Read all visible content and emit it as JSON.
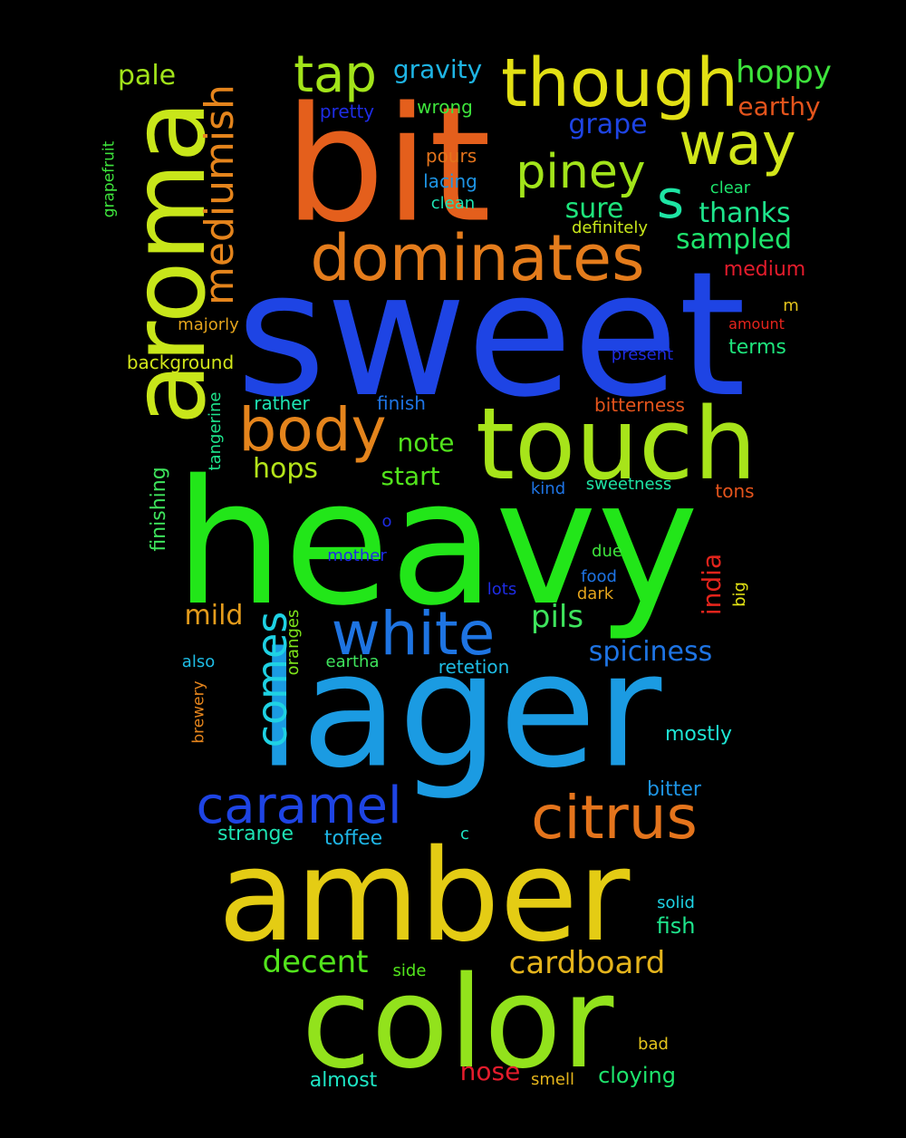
{
  "background": "#000000",
  "words": [
    {
      "text": "sweet",
      "color": "#1e44e4"
    },
    {
      "text": "heavy",
      "color": "#22e619"
    },
    {
      "text": "lager",
      "color": "#1b9be2"
    },
    {
      "text": "bit",
      "color": "#e45f1c"
    },
    {
      "text": "amber",
      "color": "#e4cc14"
    },
    {
      "text": "color",
      "color": "#92e21c"
    },
    {
      "text": "touch",
      "color": "#a7e41a"
    },
    {
      "text": "aroma",
      "color": "#c8e61a"
    },
    {
      "text": "though",
      "color": "#e2e014"
    },
    {
      "text": "dominates",
      "color": "#e47c1c"
    },
    {
      "text": "white",
      "color": "#1e74e2"
    },
    {
      "text": "citrus",
      "color": "#e4741c"
    },
    {
      "text": "caramel",
      "color": "#1e44e4"
    },
    {
      "text": "body",
      "color": "#e4841c"
    },
    {
      "text": "way",
      "color": "#d2e61a"
    },
    {
      "text": "piney",
      "color": "#a2e41a"
    },
    {
      "text": "tap",
      "color": "#a2e41a"
    },
    {
      "text": "mediumish",
      "color": "#e4841c"
    },
    {
      "text": "comes",
      "color": "#1ed2e4"
    },
    {
      "text": "s",
      "color": "#1ee4a4"
    },
    {
      "text": "cardboard",
      "color": "#e4b41c"
    },
    {
      "text": "decent",
      "color": "#52e41c"
    },
    {
      "text": "hoppy",
      "color": "#3ee43c"
    },
    {
      "text": "spiciness",
      "color": "#1e74e4"
    },
    {
      "text": "thanks",
      "color": "#1ee48c"
    },
    {
      "text": "sampled",
      "color": "#1ee46c"
    },
    {
      "text": "pils",
      "color": "#3ee45c"
    },
    {
      "text": "grape",
      "color": "#1e44e4"
    },
    {
      "text": "gravity",
      "color": "#1eb4e4"
    },
    {
      "text": "pale",
      "color": "#a2e41a"
    },
    {
      "text": "sure",
      "color": "#1ee47c"
    },
    {
      "text": "hops",
      "color": "#b4e41a"
    },
    {
      "text": "start",
      "color": "#52e41c"
    },
    {
      "text": "note",
      "color": "#52e41c"
    },
    {
      "text": "mild",
      "color": "#e49c1c"
    },
    {
      "text": "india",
      "color": "#e4241c"
    },
    {
      "text": "earthy",
      "color": "#e4541c"
    },
    {
      "text": "nose",
      "color": "#e41c2c"
    },
    {
      "text": "cloying",
      "color": "#1ee46c"
    },
    {
      "text": "fish",
      "color": "#1ee48c"
    },
    {
      "text": "almost",
      "color": "#1ee4c4"
    },
    {
      "text": "toffee",
      "color": "#1eb4e4"
    },
    {
      "text": "strange",
      "color": "#1ee4b4"
    },
    {
      "text": "bitter",
      "color": "#1e94e4"
    },
    {
      "text": "mostly",
      "color": "#1ee4d4"
    },
    {
      "text": "medium",
      "color": "#e41c2c"
    },
    {
      "text": "terms",
      "color": "#1ee47c"
    },
    {
      "text": "pours",
      "color": "#e4741c"
    },
    {
      "text": "finishing",
      "color": "#3ee45c"
    },
    {
      "text": "tangerine",
      "color": "#1ee48c"
    },
    {
      "text": "oranges",
      "color": "#7ee41a"
    },
    {
      "text": "background",
      "color": "#d2e61a"
    },
    {
      "text": "bitterness",
      "color": "#e4541c"
    },
    {
      "text": "retetion",
      "color": "#1ebce4"
    },
    {
      "text": "finish",
      "color": "#1e74e4"
    },
    {
      "text": "rather",
      "color": "#1ee4b4"
    },
    {
      "text": "wrong",
      "color": "#3ee43c"
    },
    {
      "text": "pretty",
      "color": "#1e2ce4"
    },
    {
      "text": "lacing",
      "color": "#1e94e4"
    },
    {
      "text": "clean",
      "color": "#1ee4b4"
    },
    {
      "text": "clear",
      "color": "#1ee46c"
    },
    {
      "text": "definitely",
      "color": "#c8e61a"
    },
    {
      "text": "majorly",
      "color": "#e4a41c"
    },
    {
      "text": "grapefruit",
      "color": "#3ee43c"
    },
    {
      "text": "tons",
      "color": "#e4541c"
    },
    {
      "text": "sweetness",
      "color": "#1ee4a4"
    },
    {
      "text": "kind",
      "color": "#1e74e4"
    },
    {
      "text": "eartha",
      "color": "#3ee45c"
    },
    {
      "text": "also",
      "color": "#1ebce4"
    },
    {
      "text": "brewery",
      "color": "#e4841c"
    },
    {
      "text": "present",
      "color": "#1e2ce4"
    },
    {
      "text": "amount",
      "color": "#e4241c"
    },
    {
      "text": "m",
      "color": "#e4c41c"
    },
    {
      "text": "o",
      "color": "#1e2ce4"
    },
    {
      "text": "mother",
      "color": "#1e2ce4"
    },
    {
      "text": "lots",
      "color": "#1e2ce4"
    },
    {
      "text": "due",
      "color": "#3ee43c"
    },
    {
      "text": "food",
      "color": "#1e74e4"
    },
    {
      "text": "dark",
      "color": "#e4a41c"
    },
    {
      "text": "big",
      "color": "#e4e414"
    },
    {
      "text": "c",
      "color": "#1ee4c4"
    },
    {
      "text": "solid",
      "color": "#1ed2e4"
    },
    {
      "text": "side",
      "color": "#52e41c"
    },
    {
      "text": "bad",
      "color": "#e4c41c"
    },
    {
      "text": "smell",
      "color": "#e4b41c"
    }
  ]
}
